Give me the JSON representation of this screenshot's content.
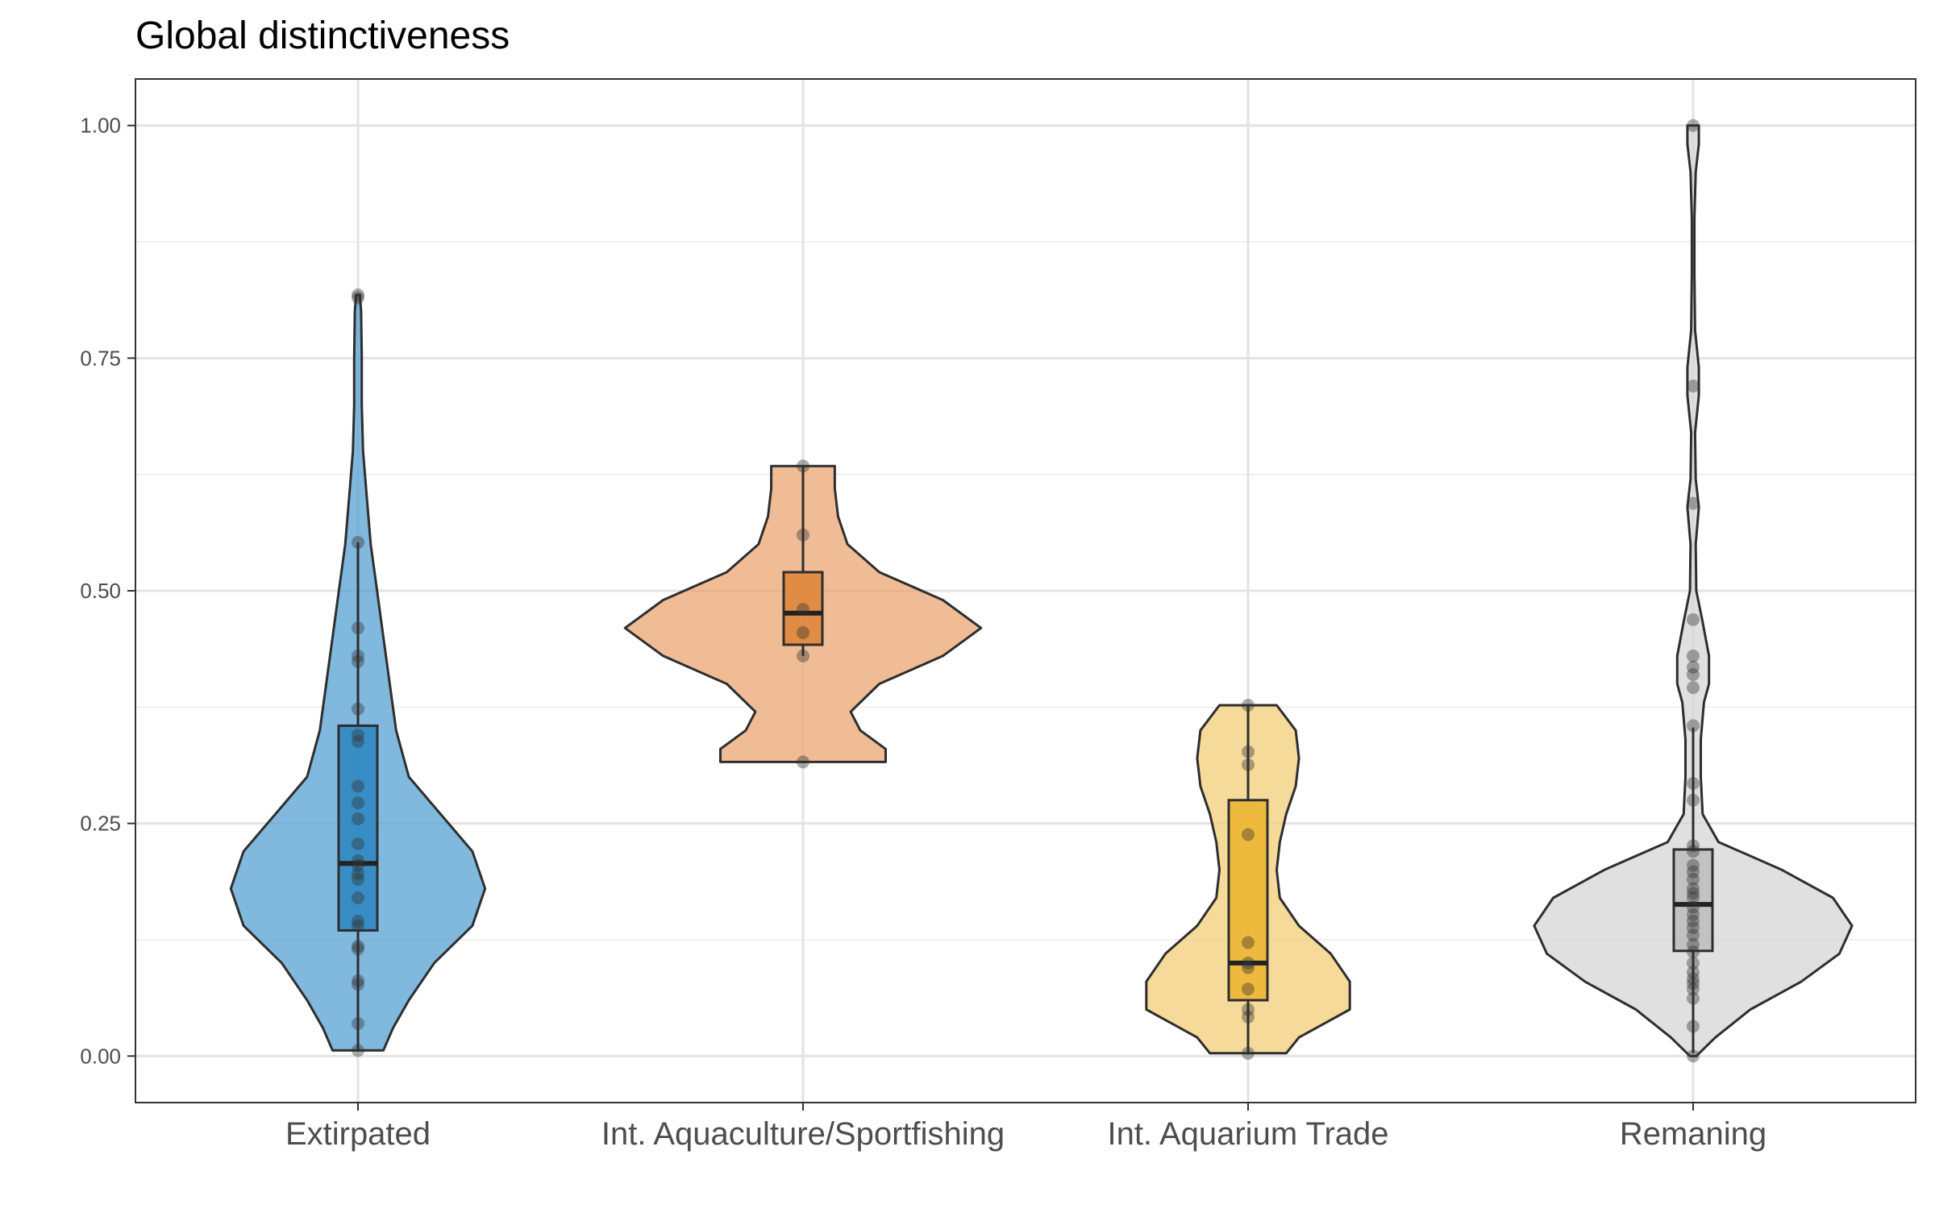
{
  "chart_data": {
    "type": "violin",
    "title": "Global distinctiveness",
    "xlabel": "",
    "ylabel": "",
    "ylim": [
      -0.05,
      1.05
    ],
    "yticks": [
      0.0,
      0.25,
      0.5,
      0.75,
      1.0
    ],
    "ytick_labels": [
      "0.00",
      "0.25",
      "0.50",
      "0.75",
      "1.00"
    ],
    "grid": true,
    "categories": [
      "Extirpated",
      "Int. Aquaculture/Sportfishing",
      "Int. Aquarium Trade",
      "Remaning"
    ],
    "groups": [
      {
        "category": "Extirpated",
        "fill": "#56a0d3",
        "box_fill": "#2b86c0",
        "box": {
          "lower_whisker": 0.006,
          "q1": 0.135,
          "median": 0.207,
          "q3": 0.355,
          "upper_whisker": 0.552
        },
        "violin": [
          [
            0.006,
            0.04
          ],
          [
            0.03,
            0.055
          ],
          [
            0.06,
            0.08
          ],
          [
            0.1,
            0.12
          ],
          [
            0.14,
            0.18
          ],
          [
            0.18,
            0.2
          ],
          [
            0.22,
            0.18
          ],
          [
            0.26,
            0.13
          ],
          [
            0.3,
            0.08
          ],
          [
            0.35,
            0.06
          ],
          [
            0.4,
            0.05
          ],
          [
            0.45,
            0.04
          ],
          [
            0.5,
            0.03
          ],
          [
            0.55,
            0.02
          ],
          [
            0.6,
            0.014
          ],
          [
            0.65,
            0.008
          ],
          [
            0.7,
            0.006
          ],
          [
            0.75,
            0.006
          ],
          [
            0.8,
            0.005
          ],
          [
            0.818,
            0.003
          ]
        ],
        "points": [
          0.818,
          0.815,
          0.552,
          0.46,
          0.43,
          0.424,
          0.373,
          0.345,
          0.338,
          0.29,
          0.272,
          0.255,
          0.228,
          0.21,
          0.205,
          0.196,
          0.19,
          0.17,
          0.145,
          0.14,
          0.118,
          0.115,
          0.081,
          0.077,
          0.035,
          0.006
        ]
      },
      {
        "category": "Int. Aquaculture/Sportfishing",
        "fill": "#eba572",
        "box_fill": "#dd8437",
        "box": {
          "lower_whisker": 0.43,
          "q1": 0.442,
          "median": 0.476,
          "q3": 0.52,
          "upper_whisker": 0.634
        },
        "violin": [
          [
            0.316,
            0.13
          ],
          [
            0.33,
            0.13
          ],
          [
            0.35,
            0.09
          ],
          [
            0.37,
            0.075
          ],
          [
            0.4,
            0.12
          ],
          [
            0.43,
            0.22
          ],
          [
            0.46,
            0.28
          ],
          [
            0.49,
            0.22
          ],
          [
            0.52,
            0.12
          ],
          [
            0.55,
            0.07
          ],
          [
            0.58,
            0.055
          ],
          [
            0.61,
            0.05
          ],
          [
            0.634,
            0.05
          ]
        ],
        "points": [
          0.634,
          0.56,
          0.48,
          0.455,
          0.43,
          0.316
        ]
      },
      {
        "category": "Int. Aquarium Trade",
        "fill": "#f1cd78",
        "box_fill": "#ecb42e",
        "box": {
          "lower_whisker": 0.003,
          "q1": 0.06,
          "median": 0.1,
          "q3": 0.275,
          "upper_whisker": 0.377
        },
        "violin": [
          [
            0.003,
            0.06
          ],
          [
            0.02,
            0.08
          ],
          [
            0.05,
            0.16
          ],
          [
            0.08,
            0.16
          ],
          [
            0.11,
            0.13
          ],
          [
            0.14,
            0.08
          ],
          [
            0.17,
            0.05
          ],
          [
            0.2,
            0.045
          ],
          [
            0.23,
            0.05
          ],
          [
            0.26,
            0.06
          ],
          [
            0.29,
            0.075
          ],
          [
            0.32,
            0.08
          ],
          [
            0.35,
            0.075
          ],
          [
            0.377,
            0.045
          ]
        ],
        "points": [
          0.377,
          0.327,
          0.313,
          0.238,
          0.122,
          0.1,
          0.095,
          0.072,
          0.05,
          0.042,
          0.003
        ]
      },
      {
        "category": "Remaning",
        "fill": "#d6d6d6",
        "box_fill": "#bcbcbc",
        "box": {
          "lower_whisker": 0.003,
          "q1": 0.113,
          "median": 0.163,
          "q3": 0.222,
          "upper_whisker": 0.353
        },
        "violin": [
          [
            0.0,
            0.005
          ],
          [
            0.02,
            0.035
          ],
          [
            0.05,
            0.09
          ],
          [
            0.08,
            0.17
          ],
          [
            0.11,
            0.23
          ],
          [
            0.14,
            0.25
          ],
          [
            0.17,
            0.22
          ],
          [
            0.2,
            0.14
          ],
          [
            0.23,
            0.04
          ],
          [
            0.26,
            0.015
          ],
          [
            0.3,
            0.012
          ],
          [
            0.34,
            0.012
          ],
          [
            0.38,
            0.017
          ],
          [
            0.4,
            0.025
          ],
          [
            0.43,
            0.025
          ],
          [
            0.47,
            0.014
          ],
          [
            0.5,
            0.005
          ],
          [
            0.55,
            0.004
          ],
          [
            0.59,
            0.009
          ],
          [
            0.62,
            0.004
          ],
          [
            0.67,
            0.003
          ],
          [
            0.71,
            0.009
          ],
          [
            0.74,
            0.009
          ],
          [
            0.78,
            0.003
          ],
          [
            0.84,
            0.002
          ],
          [
            0.9,
            0.002
          ],
          [
            0.95,
            0.004
          ],
          [
            0.98,
            0.009
          ],
          [
            1.0,
            0.009
          ]
        ],
        "points": [
          1.0,
          0.72,
          0.594,
          0.469,
          0.43,
          0.418,
          0.41,
          0.396,
          0.355,
          0.293,
          0.275,
          0.226,
          0.22,
          0.205,
          0.198,
          0.19,
          0.18,
          0.175,
          0.17,
          0.16,
          0.152,
          0.145,
          0.138,
          0.13,
          0.12,
          0.112,
          0.1,
          0.09,
          0.083,
          0.078,
          0.072,
          0.062,
          0.032,
          0.0
        ]
      }
    ]
  }
}
